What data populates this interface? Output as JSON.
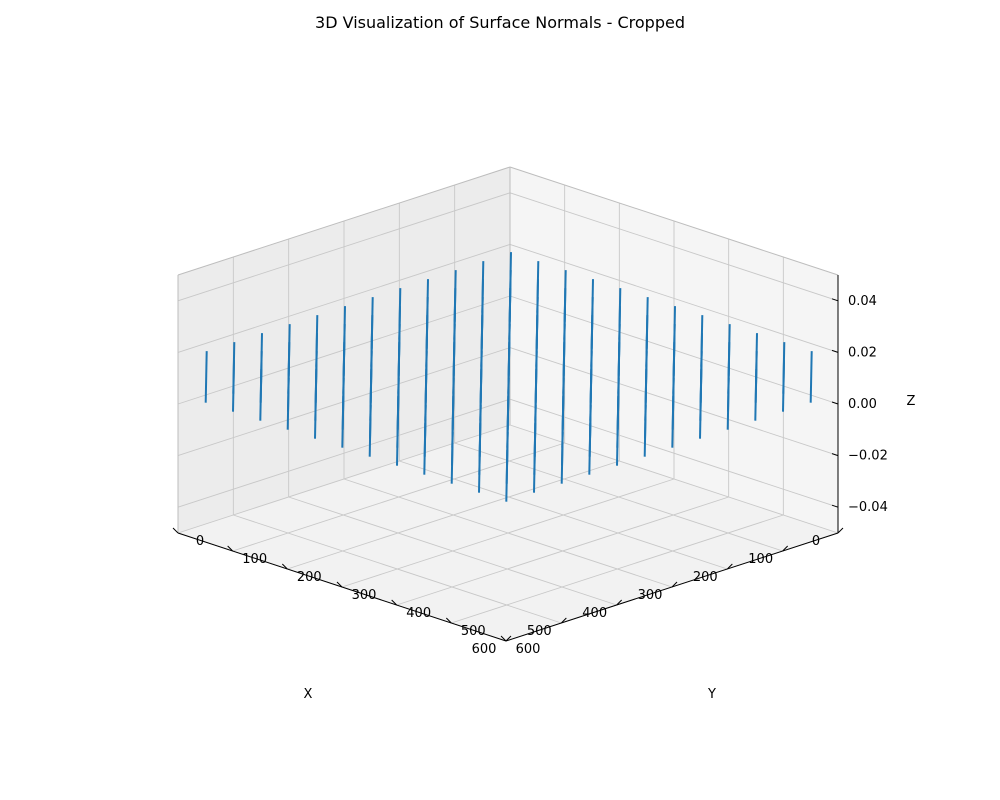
{
  "chart_data": {
    "type": "quiver3d",
    "title": "3D Visualization of Surface Normals - Cropped",
    "xlabel": "X",
    "ylabel": "Y",
    "zlabel": "Z",
    "xlim": [
      0,
      600
    ],
    "ylim": [
      0,
      600
    ],
    "zlim": [
      -0.05,
      0.05
    ],
    "x_ticks": [
      0,
      100,
      200,
      300,
      400,
      500,
      600
    ],
    "y_ticks": [
      0,
      100,
      200,
      300,
      400,
      500,
      600
    ],
    "z_ticks": [
      -0.04,
      -0.02,
      0.0,
      0.02,
      0.04
    ],
    "x_tick_labels": [
      "0",
      "100",
      "200",
      "300",
      "400",
      "500",
      "600"
    ],
    "y_tick_labels": [
      "0",
      "100",
      "200",
      "300",
      "400",
      "500",
      "600"
    ],
    "z_tick_labels": [
      "−0.04",
      "−0.02",
      "0.00",
      "0.02",
      "0.04"
    ],
    "grid": true,
    "grid_points": {
      "x_values": [
        0,
        50,
        100,
        150,
        200,
        250,
        300,
        350,
        400,
        450,
        500,
        550
      ],
      "y_values": [
        0,
        50,
        100,
        150,
        200,
        250,
        300,
        350,
        400,
        450,
        500,
        550
      ],
      "z": 0.0
    },
    "normal_vector": [
      0,
      0,
      1
    ],
    "series": [
      {
        "color": "#1f77b4"
      }
    ]
  }
}
